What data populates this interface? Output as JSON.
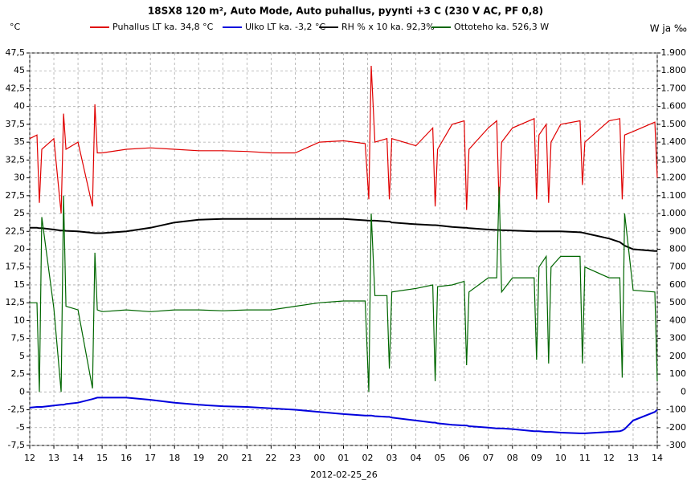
{
  "chart_data": {
    "type": "line",
    "title": "18SX8 120 m², Auto Mode, Auto puhallus, pyynti +3 C (230 V AC, PF 0,8)",
    "y_label": "°C",
    "y2_label": "W ja ‰",
    "x_label": "2012-02-25_26",
    "grid": true,
    "legend": "top",
    "xlim": [
      0,
      26
    ],
    "xticks": [
      {
        "value": 0,
        "label": "12"
      },
      {
        "value": 1,
        "label": "13"
      },
      {
        "value": 2,
        "label": "14"
      },
      {
        "value": 3,
        "label": "15"
      },
      {
        "value": 4,
        "label": "16"
      },
      {
        "value": 5,
        "label": "17"
      },
      {
        "value": 6,
        "label": "18"
      },
      {
        "value": 7,
        "label": "19"
      },
      {
        "value": 8,
        "label": "20"
      },
      {
        "value": 9,
        "label": "21"
      },
      {
        "value": 10,
        "label": "22"
      },
      {
        "value": 11,
        "label": "23"
      },
      {
        "value": 12,
        "label": "00"
      },
      {
        "value": 13,
        "label": "01"
      },
      {
        "value": 14,
        "label": "02"
      },
      {
        "value": 15,
        "label": "03"
      },
      {
        "value": 16,
        "label": "04"
      },
      {
        "value": 17,
        "label": "05"
      },
      {
        "value": 18,
        "label": "06"
      },
      {
        "value": 19,
        "label": "07"
      },
      {
        "value": 20,
        "label": "08"
      },
      {
        "value": 21,
        "label": "09"
      },
      {
        "value": 22,
        "label": "10"
      },
      {
        "value": 23,
        "label": "11"
      },
      {
        "value": 24,
        "label": "12"
      },
      {
        "value": 25,
        "label": "13"
      },
      {
        "value": 26,
        "label": "14"
      }
    ],
    "ylim": [
      -7.5,
      47.5
    ],
    "yticks": [
      {
        "value": -7.5,
        "label": "-7,5"
      },
      -5,
      {
        "value": -2.5,
        "label": "-2,5"
      },
      0,
      {
        "value": 2.5,
        "label": "2,5"
      },
      5,
      {
        "value": 7.5,
        "label": "7,5"
      },
      10,
      {
        "value": 12.5,
        "label": "12,5"
      },
      15,
      {
        "value": 17.5,
        "label": "17,5"
      },
      20,
      {
        "value": 22.5,
        "label": "22,5"
      },
      25,
      {
        "value": 27.5,
        "label": "27,5"
      },
      30,
      {
        "value": 32.5,
        "label": "32,5"
      },
      35,
      {
        "value": 37.5,
        "label": "37,5"
      },
      40,
      {
        "value": 42.5,
        "label": "42,5"
      },
      45,
      {
        "value": 47.5,
        "label": "47,5"
      }
    ],
    "y2lim": [
      -300,
      1900
    ],
    "y2ticks": [
      -300,
      -200,
      -100,
      0,
      100,
      200,
      300,
      400,
      500,
      600,
      700,
      800,
      900,
      {
        "value": 1000,
        "label": "1.000"
      },
      {
        "value": 1100,
        "label": "1.100"
      },
      {
        "value": 1200,
        "label": "1.200"
      },
      {
        "value": 1300,
        "label": "1.300"
      },
      {
        "value": 1400,
        "label": "1.400"
      },
      {
        "value": 1500,
        "label": "1.500"
      },
      {
        "value": 1600,
        "label": "1.600"
      },
      {
        "value": 1700,
        "label": "1.700"
      },
      {
        "value": 1800,
        "label": "1.800"
      },
      {
        "value": 1900,
        "label": "1.900"
      }
    ],
    "x": [
      0,
      0.3,
      0.4,
      0.5,
      1,
      1.3,
      1.4,
      1.5,
      2,
      2.6,
      2.7,
      2.8,
      3,
      4,
      5,
      6,
      7,
      8,
      9,
      10,
      11,
      12,
      13,
      13.9,
      14.05,
      14.15,
      14.3,
      14.8,
      14.9,
      15,
      16,
      16.7,
      16.8,
      16.9,
      17.5,
      18,
      18.1,
      18.2,
      19,
      19.35,
      19.45,
      19.55,
      20,
      20.9,
      21.0,
      21.1,
      21.4,
      21.5,
      21.6,
      22,
      22.8,
      22.9,
      23.0,
      24,
      24.45,
      24.55,
      24.65,
      25,
      25.9,
      26
    ],
    "series": [
      {
        "name": "Puhallus LT ka. 34,8 °C",
        "color": "#e00000",
        "width": 1.2,
        "values": [
          35.5,
          36,
          26.5,
          34,
          35.5,
          25,
          39,
          34,
          35,
          26,
          40.3,
          33.5,
          33.5,
          34,
          34.2,
          34,
          33.8,
          33.8,
          33.7,
          33.5,
          33.5,
          35,
          35.2,
          34.8,
          27,
          45.7,
          35,
          35.5,
          27,
          35.5,
          34.5,
          37,
          26,
          34,
          37.5,
          38,
          25.5,
          34,
          37,
          38,
          26,
          35,
          37,
          38.3,
          27,
          36,
          37.5,
          26.5,
          35,
          37.5,
          38,
          29,
          35,
          38,
          38.3,
          27,
          36,
          36.5,
          37.8,
          30
        ]
      },
      {
        "name": "Ulko LT ka. -3,2 °C",
        "color": "#0000dd",
        "width": 2,
        "values": [
          -2.2,
          -2.1,
          -2.1,
          -2.1,
          -1.9,
          -1.8,
          -1.8,
          -1.7,
          -1.5,
          -1,
          -0.9,
          -0.8,
          -0.8,
          -0.8,
          -1.1,
          -1.5,
          -1.8,
          -2,
          -2.1,
          -2.3,
          -2.5,
          -2.8,
          -3.1,
          -3.3,
          -3.3,
          -3.3,
          -3.4,
          -3.5,
          -3.5,
          -3.6,
          -4,
          -4.3,
          -4.3,
          -4.4,
          -4.6,
          -4.7,
          -4.7,
          -4.8,
          -5,
          -5.1,
          -5.1,
          -5.1,
          -5.2,
          -5.5,
          -5.5,
          -5.5,
          -5.6,
          -5.6,
          -5.6,
          -5.7,
          -5.8,
          -5.8,
          -5.8,
          -5.6,
          -5.5,
          -5.4,
          -5.2,
          -4,
          -2.8,
          -2.5
        ]
      },
      {
        "name": "RH % x 10 ka. 92,3%",
        "color": "#000000",
        "width": 2,
        "axis": "y2",
        "values": [
          920,
          920,
          918,
          918,
          910,
          905,
          905,
          903,
          900,
          892,
          890,
          890,
          890,
          900,
          920,
          950,
          965,
          970,
          970,
          970,
          970,
          970,
          970,
          962,
          960,
          960,
          960,
          955,
          955,
          950,
          940,
          935,
          935,
          934,
          925,
          920,
          920,
          918,
          910,
          908,
          908,
          907,
          905,
          900,
          900,
          900,
          900,
          900,
          900,
          900,
          895,
          893,
          890,
          860,
          840,
          830,
          820,
          800,
          790,
          790
        ]
      },
      {
        "name": "Ottoteho ka. 526,3 W",
        "color": "#006600",
        "width": 1.2,
        "axis": "y2",
        "values": [
          500,
          500,
          0,
          980,
          470,
          0,
          1100,
          480,
          460,
          20,
          780,
          460,
          450,
          460,
          450,
          460,
          460,
          455,
          460,
          460,
          480,
          500,
          510,
          510,
          0,
          1000,
          540,
          540,
          130,
          560,
          580,
          600,
          60,
          590,
          600,
          620,
          150,
          560,
          640,
          640,
          1150,
          560,
          640,
          640,
          180,
          700,
          760,
          160,
          700,
          760,
          760,
          160,
          700,
          640,
          640,
          80,
          1000,
          570,
          560,
          60
        ]
      }
    ]
  }
}
